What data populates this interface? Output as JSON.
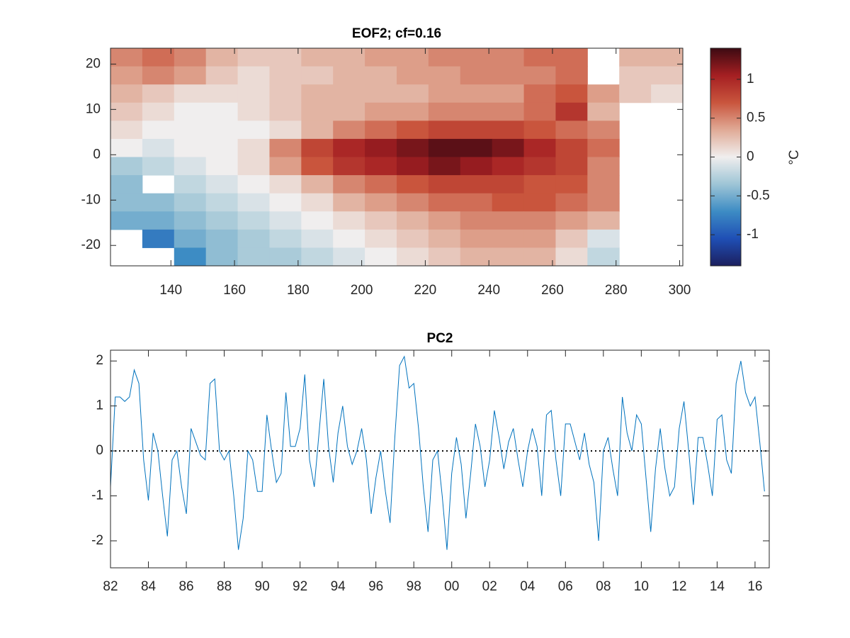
{
  "chart_data": [
    {
      "type": "heatmap",
      "title": "EOF2; cf=0.16",
      "colorbar_label": "°C",
      "xlim": [
        121,
        301
      ],
      "ylim": [
        -24.5,
        23.5
      ],
      "xticks": [
        140,
        160,
        180,
        200,
        220,
        240,
        260,
        280,
        300
      ],
      "yticks": [
        -20,
        -10,
        0,
        10,
        20
      ],
      "clim": [
        -1.4,
        1.4
      ],
      "cticks": [
        -1,
        -0.5,
        0,
        0.5,
        1
      ],
      "colormap": [
        "#1c1f5e",
        "#1f4fb5",
        "#3d8cc4",
        "#9ec5d6",
        "#f0eeee",
        "#e0aa96",
        "#c9553d",
        "#a51f22",
        "#3d0a12"
      ],
      "lon_bins": [
        121,
        131,
        141,
        151,
        161,
        171,
        181,
        191,
        201,
        211,
        221,
        231,
        241,
        251,
        261,
        271,
        281,
        291,
        301
      ],
      "lat_bins": [
        23.5,
        19.5,
        15.5,
        11.5,
        7.5,
        3.5,
        -0.5,
        -4.5,
        -8.5,
        -12.5,
        -16.5,
        -20.5,
        -24.5
      ],
      "values": [
        [
          0.5,
          0.6,
          0.5,
          0.3,
          0.2,
          0.2,
          0.3,
          0.3,
          0.4,
          0.4,
          0.5,
          0.5,
          0.5,
          0.6,
          0.6,
          null,
          0.3,
          0.3
        ],
        [
          0.4,
          0.5,
          0.4,
          0.2,
          0.1,
          0.2,
          0.2,
          0.3,
          0.3,
          0.4,
          0.4,
          0.5,
          0.5,
          0.5,
          0.6,
          null,
          0.2,
          0.2
        ],
        [
          0.3,
          0.2,
          0.1,
          0.1,
          0.1,
          0.2,
          0.3,
          0.3,
          0.3,
          0.3,
          0.4,
          0.4,
          0.4,
          0.6,
          0.7,
          0.4,
          0.2,
          0.1
        ],
        [
          0.2,
          0.1,
          0.0,
          0.0,
          0.1,
          0.2,
          0.3,
          0.3,
          0.4,
          0.4,
          0.5,
          0.5,
          0.5,
          0.6,
          0.9,
          0.3,
          null,
          null
        ],
        [
          0.1,
          0.0,
          0.0,
          0.0,
          0.0,
          0.1,
          0.3,
          0.5,
          0.6,
          0.7,
          0.8,
          0.8,
          0.8,
          0.7,
          0.6,
          0.5,
          null,
          null
        ],
        [
          0.0,
          -0.1,
          0.0,
          0.0,
          0.1,
          0.5,
          0.8,
          1.0,
          1.1,
          1.2,
          1.3,
          1.3,
          1.2,
          1.0,
          0.8,
          0.6,
          null,
          null
        ],
        [
          -0.3,
          -0.2,
          -0.1,
          0.0,
          0.1,
          0.4,
          0.7,
          0.9,
          1.0,
          1.1,
          1.2,
          1.1,
          1.0,
          0.9,
          0.8,
          0.5,
          null,
          null
        ],
        [
          -0.4,
          null,
          -0.2,
          -0.1,
          0.0,
          0.1,
          0.3,
          0.5,
          0.6,
          0.7,
          0.8,
          0.8,
          0.8,
          0.7,
          0.7,
          0.5,
          null,
          null
        ],
        [
          -0.4,
          -0.4,
          -0.3,
          -0.2,
          -0.1,
          0.0,
          0.1,
          0.3,
          0.4,
          0.5,
          0.6,
          0.6,
          0.7,
          0.7,
          0.6,
          0.5,
          null,
          null
        ],
        [
          -0.5,
          -0.5,
          -0.4,
          -0.3,
          -0.2,
          -0.1,
          0.0,
          0.1,
          0.2,
          0.3,
          0.4,
          0.5,
          0.5,
          0.5,
          0.4,
          0.3,
          null,
          null
        ],
        [
          null,
          -0.8,
          -0.5,
          -0.4,
          -0.3,
          -0.2,
          -0.1,
          0.0,
          0.1,
          0.2,
          0.3,
          0.4,
          0.4,
          0.4,
          0.2,
          -0.1,
          null,
          null
        ],
        [
          null,
          null,
          -0.7,
          -0.4,
          -0.3,
          -0.3,
          -0.2,
          -0.1,
          0.0,
          0.1,
          0.2,
          0.3,
          0.3,
          0.3,
          0.1,
          -0.2,
          null,
          null
        ]
      ]
    },
    {
      "type": "line",
      "title": "PC2",
      "xlim": [
        1982,
        2016.75
      ],
      "ylim": [
        -2.6,
        2.24
      ],
      "xticks": [
        {
          "value": 1982,
          "label": "82"
        },
        {
          "value": 1984,
          "label": "84"
        },
        {
          "value": 1986,
          "label": "86"
        },
        {
          "value": 1988,
          "label": "88"
        },
        {
          "value": 1990,
          "label": "90"
        },
        {
          "value": 1992,
          "label": "92"
        },
        {
          "value": 1994,
          "label": "94"
        },
        {
          "value": 1996,
          "label": "96"
        },
        {
          "value": 1998,
          "label": "98"
        },
        {
          "value": 2000,
          "label": "00"
        },
        {
          "value": 2002,
          "label": "02"
        },
        {
          "value": 2004,
          "label": "04"
        },
        {
          "value": 2006,
          "label": "06"
        },
        {
          "value": 2008,
          "label": "08"
        },
        {
          "value": 2010,
          "label": "10"
        },
        {
          "value": 2012,
          "label": "12"
        },
        {
          "value": 2014,
          "label": "14"
        },
        {
          "value": 2016,
          "label": "16"
        }
      ],
      "yticks": [
        -2,
        -1,
        0,
        1,
        2
      ],
      "reference_line": 0,
      "x": [
        1982,
        1982.25,
        1982.5,
        1982.75,
        1983,
        1983.25,
        1983.5,
        1983.75,
        1984,
        1984.25,
        1984.5,
        1984.75,
        1985,
        1985.25,
        1985.5,
        1985.75,
        1986,
        1986.25,
        1986.5,
        1986.75,
        1987,
        1987.25,
        1987.5,
        1987.75,
        1988,
        1988.25,
        1988.5,
        1988.75,
        1989,
        1989.25,
        1989.5,
        1989.75,
        1990,
        1990.25,
        1990.5,
        1990.75,
        1991,
        1991.25,
        1991.5,
        1991.75,
        1992,
        1992.25,
        1992.5,
        1992.75,
        1993,
        1993.25,
        1993.5,
        1993.75,
        1994,
        1994.25,
        1994.5,
        1994.75,
        1995,
        1995.25,
        1995.5,
        1995.75,
        1996,
        1996.25,
        1996.5,
        1996.75,
        1997,
        1997.25,
        1997.5,
        1997.75,
        1998,
        1998.25,
        1998.5,
        1998.75,
        1999,
        1999.25,
        1999.5,
        1999.75,
        2000,
        2000.25,
        2000.5,
        2000.75,
        2001,
        2001.25,
        2001.5,
        2001.75,
        2002,
        2002.25,
        2002.5,
        2002.75,
        2003,
        2003.25,
        2003.5,
        2003.75,
        2004,
        2004.25,
        2004.5,
        2004.75,
        2005,
        2005.25,
        2005.5,
        2005.75,
        2006,
        2006.25,
        2006.5,
        2006.75,
        2007,
        2007.25,
        2007.5,
        2007.75,
        2008,
        2008.25,
        2008.5,
        2008.75,
        2009,
        2009.25,
        2009.5,
        2009.75,
        2010,
        2010.25,
        2010.5,
        2010.75,
        2011,
        2011.25,
        2011.5,
        2011.75,
        2012,
        2012.25,
        2012.5,
        2012.75,
        2013,
        2013.25,
        2013.5,
        2013.75,
        2014,
        2014.25,
        2014.5,
        2014.75,
        2015,
        2015.25,
        2015.5,
        2015.75,
        2016,
        2016.25,
        2016.5
      ],
      "series": [
        {
          "color": "#0072bd",
          "values": [
            -0.8,
            1.2,
            1.2,
            1.1,
            1.2,
            1.8,
            1.5,
            -0.2,
            -1.1,
            0.4,
            0.0,
            -1.0,
            -1.9,
            -0.2,
            0.0,
            -0.8,
            -1.4,
            0.5,
            0.2,
            -0.1,
            -0.2,
            1.5,
            1.6,
            0.0,
            -0.2,
            0.0,
            -1.0,
            -2.2,
            -1.5,
            0.0,
            -0.2,
            -0.9,
            -0.9,
            0.8,
            0.0,
            -0.7,
            -0.5,
            1.3,
            0.1,
            0.1,
            0.5,
            1.7,
            -0.2,
            -0.8,
            0.4,
            1.6,
            0.1,
            -0.7,
            0.4,
            1.0,
            0.1,
            -0.3,
            0.0,
            0.5,
            -0.2,
            -1.4,
            -0.6,
            0.0,
            -0.9,
            -1.6,
            0.3,
            1.9,
            2.1,
            1.4,
            1.5,
            0.5,
            -0.8,
            -1.8,
            -0.2,
            0.0,
            -1.0,
            -2.2,
            -0.5,
            0.3,
            -0.3,
            -1.5,
            -0.5,
            0.6,
            0.1,
            -0.8,
            -0.2,
            0.9,
            0.3,
            -0.4,
            0.2,
            0.5,
            -0.2,
            -0.8,
            0.0,
            0.5,
            0.1,
            -1.0,
            0.8,
            0.9,
            -0.2,
            -1.0,
            0.6,
            0.6,
            0.2,
            -0.2,
            0.4,
            -0.3,
            -0.7,
            -2.0,
            0.0,
            0.3,
            -0.4,
            -1.0,
            1.2,
            0.4,
            0.0,
            0.8,
            0.6,
            -0.6,
            -1.8,
            -0.4,
            0.5,
            -0.4,
            -1.0,
            -0.8,
            0.5,
            1.1,
            0.0,
            -1.2,
            0.3,
            0.3,
            -0.3,
            -1.0,
            0.7,
            0.8,
            -0.2,
            -0.5,
            1.5,
            2.0,
            1.3,
            1.0,
            1.2,
            0.2,
            -0.9
          ]
        }
      ]
    }
  ]
}
